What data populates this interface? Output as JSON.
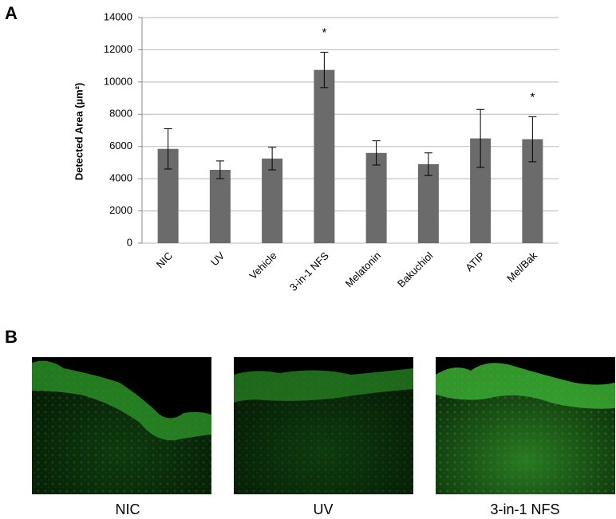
{
  "panel_labels": [
    "A",
    "B"
  ],
  "chart_data": {
    "type": "bar",
    "y_label": "Detected Area (µm²)",
    "categories": [
      "NIC",
      "UV",
      "Vehicle",
      "3-in-1 NFS",
      "Melatonin",
      "Bakuchiol",
      "ATIP",
      "Mel/Bak"
    ],
    "values": [
      5850,
      4550,
      5250,
      10750,
      5600,
      4900,
      6500,
      6450
    ],
    "errors": [
      1250,
      550,
      700,
      1100,
      750,
      700,
      1800,
      1400
    ],
    "markers": [
      null,
      null,
      null,
      "*",
      null,
      null,
      null,
      "*"
    ],
    "color": "#6b6b6b",
    "ylim": [
      0,
      14000
    ],
    "yticks": [
      0,
      2000,
      4000,
      6000,
      8000,
      10000,
      12000,
      14000
    ],
    "grid": true
  },
  "panel_b": {
    "images": [
      {
        "caption": "NIC"
      },
      {
        "caption": "UV"
      },
      {
        "caption": "3-in-1 NFS"
      }
    ]
  }
}
